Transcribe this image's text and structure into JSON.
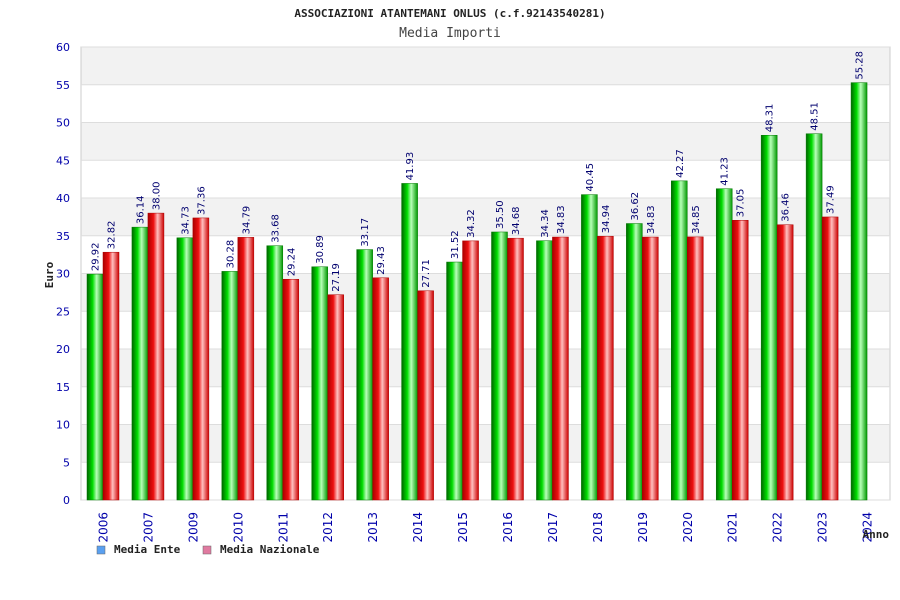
{
  "chart_data": {
    "type": "bar",
    "title": "ASSOCIAZIONI ATANTEMANI ONLUS (c.f.92143540281)",
    "subtitle": "Media Importi",
    "xlabel": "Anno",
    "ylabel": "Euro",
    "ylim": [
      0,
      60
    ],
    "yticks": [
      0,
      5,
      10,
      15,
      20,
      25,
      30,
      35,
      40,
      45,
      50,
      55,
      60
    ],
    "grid": true,
    "legend_position": "bottom-left",
    "categories": [
      "2006",
      "2007",
      "2009",
      "2010",
      "2011",
      "2012",
      "2013",
      "2014",
      "2015",
      "2016",
      "2017",
      "2018",
      "2019",
      "2020",
      "2021",
      "2022",
      "2023",
      "2024"
    ],
    "series": [
      {
        "name": "Media Ente",
        "color": "#00bb00",
        "values": [
          29.92,
          36.14,
          34.73,
          30.28,
          33.68,
          30.89,
          33.17,
          41.93,
          31.52,
          35.5,
          34.34,
          40.45,
          36.62,
          42.27,
          41.23,
          48.31,
          48.51,
          55.28
        ],
        "labels": [
          "29.92",
          "36.14",
          "34.73",
          "30.28",
          "33.68",
          "30.89",
          "33.17",
          "41.93",
          "31.52",
          "35.50",
          "34.34",
          "40.45",
          "36.62",
          "42.27",
          "41.23",
          "48.31",
          "48.51",
          "55.28"
        ]
      },
      {
        "name": "Media Nazionale",
        "color": "#ee1111",
        "values": [
          32.82,
          38.0,
          37.36,
          34.79,
          29.24,
          27.19,
          29.43,
          27.71,
          34.32,
          34.68,
          34.83,
          34.94,
          34.83,
          34.85,
          37.05,
          36.46,
          37.49,
          null
        ],
        "labels": [
          "32.82",
          "38.00",
          "37.36",
          "34.79",
          "29.24",
          "27.19",
          "29.43",
          "27.71",
          "34.32",
          "34.68",
          "34.83",
          "34.94",
          "34.83",
          "34.85",
          "37.05",
          "36.46",
          "37.49",
          null
        ]
      }
    ],
    "legend": [
      {
        "name": "Media Ente",
        "swatch": "#5aa0f0"
      },
      {
        "name": "Media Nazionale",
        "swatch": "#e07aa0"
      }
    ]
  }
}
